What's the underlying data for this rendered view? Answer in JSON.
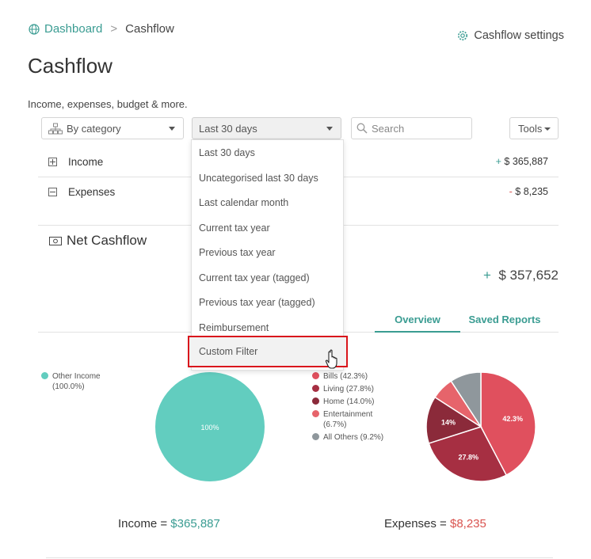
{
  "breadcrumb": {
    "root": "Dashboard",
    "separator": ">",
    "current": "Cashflow"
  },
  "settings_label": "Cashflow settings",
  "page_title": "Cashflow",
  "subtitle": "Income, expenses, budget & more.",
  "filters": {
    "group_by": "By category",
    "period": "Last 30 days",
    "search_placeholder": "Search",
    "tools_label": "Tools"
  },
  "rows": [
    {
      "label": "Income",
      "sign": "+",
      "value": "$ 365,887"
    },
    {
      "label": "Expenses",
      "sign": "-",
      "value": "$ 8,235"
    }
  ],
  "net": {
    "label": "Net Cashflow",
    "sign": "+",
    "value": "$ 357,652"
  },
  "tabs": {
    "overview": "Overview",
    "saved_reports": "Saved Reports"
  },
  "dropdown_options": [
    "Last 30 days",
    "Uncategorised last 30 days",
    "Last calendar month",
    "Current tax year",
    "Previous tax year",
    "Current tax year (tagged)",
    "Previous tax year (tagged)",
    "Reimbursement",
    "Custom Filter"
  ],
  "chart_data": [
    {
      "type": "pie",
      "title": "",
      "slices": [
        {
          "label": "Other Income",
          "legend": "Other Income (100.0%)",
          "value": 100.0,
          "data_label": "100%",
          "color": "#62cdbf"
        }
      ]
    },
    {
      "type": "pie",
      "title": "",
      "slices": [
        {
          "label": "Bills",
          "legend": "Bills (42.3%)",
          "value": 42.3,
          "data_label": "42.3%",
          "color": "#e0505e"
        },
        {
          "label": "Living",
          "legend": "Living (27.8%)",
          "value": 27.8,
          "data_label": "27.8%",
          "color": "#a62f42"
        },
        {
          "label": "Home",
          "legend": "Home (14.0%)",
          "value": 14.0,
          "data_label": "14%",
          "color": "#8b2a3a"
        },
        {
          "label": "Entertainment",
          "legend": "Entertainment (6.7%)",
          "value": 6.7,
          "data_label": "",
          "color": "#e6646b"
        },
        {
          "label": "All Others",
          "legend": "All Others (9.2%)",
          "value": 9.2,
          "data_label": "",
          "color": "#8f979c"
        }
      ]
    }
  ],
  "totals": {
    "income_label": "Income =",
    "income_value": "$365,887",
    "expenses_label": "Expenses =",
    "expenses_value": "$8,235"
  }
}
